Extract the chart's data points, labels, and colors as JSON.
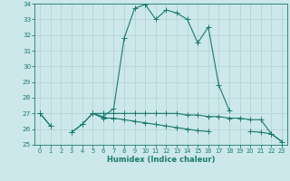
{
  "xlabel": "Humidex (Indice chaleur)",
  "x": [
    0,
    1,
    2,
    3,
    4,
    5,
    6,
    7,
    8,
    9,
    10,
    11,
    12,
    13,
    14,
    15,
    16,
    17,
    18,
    19,
    20,
    21,
    22,
    23
  ],
  "line_main": [
    27.0,
    26.2,
    null,
    25.8,
    26.3,
    27.0,
    26.8,
    27.3,
    31.8,
    33.7,
    33.95,
    33.0,
    33.6,
    33.4,
    33.0,
    31.5,
    32.5,
    28.8,
    27.2,
    null,
    null,
    null,
    null,
    null
  ],
  "line_mid": [
    27.0,
    26.2,
    null,
    25.8,
    26.3,
    27.0,
    26.7,
    26.7,
    26.6,
    26.5,
    26.4,
    26.3,
    26.2,
    26.1,
    26.0,
    25.9,
    25.85,
    null,
    null,
    null,
    25.85,
    25.8,
    25.7,
    25.2
  ],
  "line_low": [
    27.0,
    null,
    null,
    null,
    null,
    27.0,
    27.0,
    27.0,
    27.0,
    27.0,
    27.0,
    27.0,
    27.0,
    27.0,
    26.9,
    26.9,
    26.8,
    26.8,
    26.7,
    26.7,
    26.6,
    26.6,
    25.7,
    25.2
  ],
  "ylim": [
    25,
    34
  ],
  "xlim": [
    -0.5,
    23.5
  ],
  "yticks": [
    25,
    26,
    27,
    28,
    29,
    30,
    31,
    32,
    33,
    34
  ],
  "xticks": [
    0,
    1,
    2,
    3,
    4,
    5,
    6,
    7,
    8,
    9,
    10,
    11,
    12,
    13,
    14,
    15,
    16,
    17,
    18,
    19,
    20,
    21,
    22,
    23
  ],
  "line_color": "#1a7a6e",
  "bg_color": "#cce8ea",
  "grid_color": "#b0d0d2",
  "markersize": 2.2,
  "linewidth": 0.8
}
